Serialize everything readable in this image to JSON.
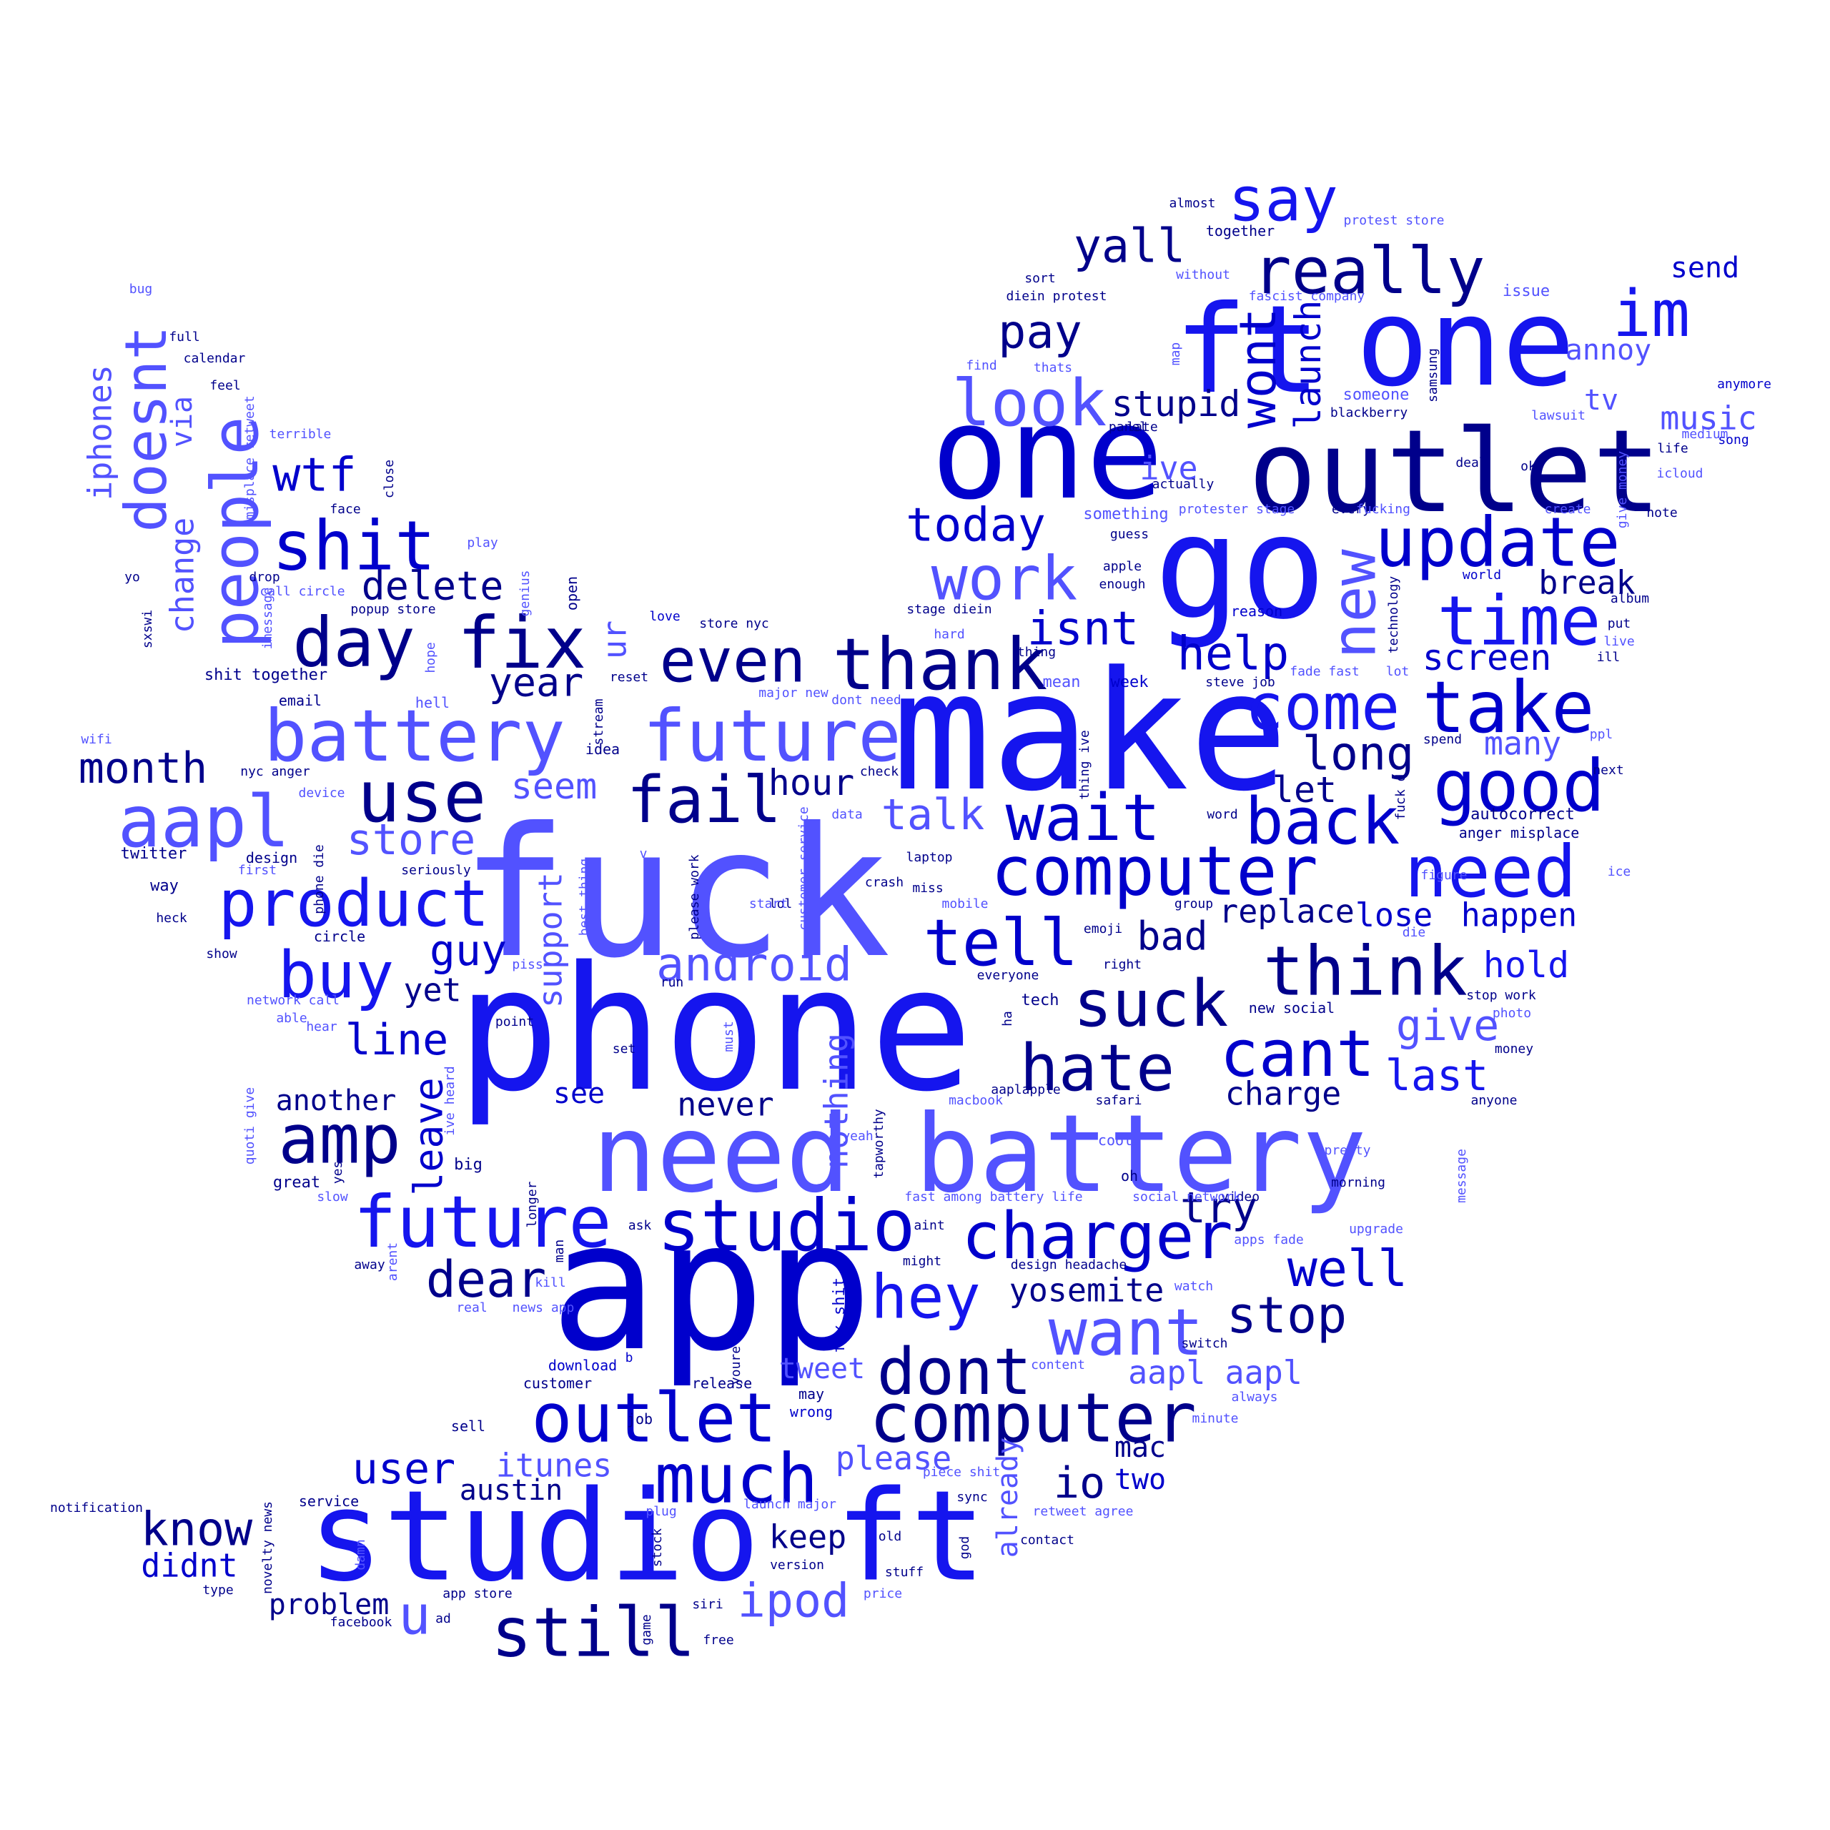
{
  "colors": {
    "background": "#ffffff",
    "palette": [
      "#0000cc",
      "#1515ee",
      "#5252ff",
      "#00008b",
      "#3333ff"
    ]
  },
  "words": [
    "fuck",
    "phone",
    "make",
    "app",
    "need battery",
    "go",
    "one",
    "outlet",
    "ft",
    "studio ft",
    "studio",
    "future",
    "battery",
    "computer",
    "need",
    "thank",
    "take",
    "update",
    "time",
    "good",
    "come",
    "back",
    "wait",
    "think",
    "tell",
    "suck",
    "hate",
    "cant",
    "charger",
    "outlet",
    "computer",
    "much",
    "still",
    "dont",
    "want",
    "hey",
    "stop",
    "well",
    "dear",
    "amp",
    "fix",
    "day",
    "shit",
    "people",
    "doesnt",
    "aapl",
    "product",
    "buy",
    "use",
    "fail",
    "even",
    "say",
    "really",
    "yall",
    "im",
    "new",
    "look",
    "work",
    "pay",
    "wont",
    "launch",
    "stupid",
    "isnt",
    "help",
    "screen",
    "long",
    "let",
    "today",
    "wtf",
    "iphones",
    "via",
    "change",
    "delete",
    "year",
    "month",
    "store",
    "talk",
    "hour",
    "seem",
    "android",
    "guy",
    "yet",
    "line",
    "leave",
    "another",
    "see",
    "never",
    "nothing",
    "charge",
    "last",
    "give",
    "replace",
    "lose",
    "happen",
    "hold",
    "bad",
    "know",
    "didnt",
    "problem",
    "u",
    "austin",
    "user",
    "itunes",
    "please",
    "keep",
    "ipod",
    "tweet",
    "aapl aapl",
    "yosemite",
    "io",
    "two",
    "mac",
    "already",
    "support",
    "ur",
    "break",
    "music",
    "annoy",
    "tv",
    "send",
    "ive",
    "many",
    "autocorrect",
    "anger misplace",
    "try",
    "service",
    "sell",
    "download",
    "customer",
    "release",
    "may",
    "wrong",
    "job",
    "fix shit",
    "youre",
    "tapworthy",
    "yeah",
    "aaplapple",
    "safari",
    "cool",
    "oh",
    "macbook",
    "anyone",
    "pretty",
    "morning",
    "message",
    "upgrade",
    "apps fade",
    "video",
    "social network",
    "fast among battery life",
    "aint",
    "might",
    "design headache",
    "watch",
    "always",
    "minute",
    "switch",
    "content",
    "retweet agree",
    "contact",
    "sync",
    "piece shit",
    "launch major",
    "old",
    "stuff",
    "version",
    "siri",
    "price",
    "game",
    "free",
    "app store",
    "ad",
    "facebook",
    "type",
    "notification",
    "novelty news",
    "damn",
    "stock",
    "plug",
    "god",
    "news app",
    "real",
    "kill",
    "man",
    "ask",
    "b",
    "longer",
    "arent",
    "away",
    "big",
    "yes",
    "slow",
    "great",
    "quoti give",
    "ive heard",
    "network call",
    "able",
    "hear",
    "point",
    "set",
    "must",
    "run",
    "piss",
    "show",
    "heck",
    "way",
    "twitter",
    "design",
    "first",
    "seriously",
    "phone die",
    "device",
    "nyc anger",
    "wifi",
    "email",
    "idea",
    "reset",
    "stream",
    "best thing",
    "please work",
    "v",
    "circle",
    "lol",
    "start",
    "customer service",
    "crash",
    "miss",
    "laptop",
    "mobile",
    "check",
    "data",
    "dont need",
    "major new",
    "fuck d",
    "thing ive",
    "spend",
    "ppl",
    "next",
    "ice",
    "figure",
    "die",
    "word",
    "group",
    "emoji",
    "right",
    "everyone",
    "tech",
    "ha",
    "new social",
    "stop work",
    "photo",
    "money",
    "mean",
    "week",
    "steve job",
    "hard",
    "thing",
    "stage diein",
    "reason",
    "fade fast",
    "lot",
    "technology",
    "world",
    "live",
    "put",
    "ill",
    "album",
    "guess",
    "apple",
    "enough",
    "something",
    "protester stage",
    "every",
    "fucking",
    "create",
    "note",
    "icloud",
    "life",
    "ok",
    "deal",
    "give money",
    "actually",
    "panel",
    "late",
    "blackberry",
    "someone",
    "lawsuit",
    "song",
    "medium",
    "anymore",
    "samsung",
    "map",
    "thats",
    "find",
    "sort",
    "diein protest",
    "without",
    "fascist company",
    "issue",
    "together",
    "almost",
    "protest store",
    "love",
    "store nyc",
    "shit together",
    "hope",
    "hell",
    "open",
    "genius",
    "popup store",
    "call circle",
    "imessage",
    "drop",
    "play",
    "face",
    "close",
    "terrible",
    "misplace retweet",
    "feel",
    "calendar",
    "full",
    "bug",
    "yo",
    "sxswi"
  ]
}
